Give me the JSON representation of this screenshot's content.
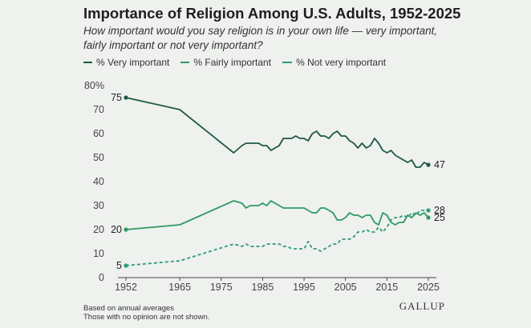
{
  "colors": {
    "very": "#1f5a44",
    "fairly": "#2f9a63",
    "not": "#2f9a78",
    "axis": "#444444",
    "grid": "#cfd6cf"
  },
  "title": "Importance of Religion Among U.S. Adults, 1952-2025",
  "subtitle": "How important would you say religion is in your own life — very important, fairly important or not very important?",
  "legend": {
    "very": "% Very important",
    "fairly": "% Fairly important",
    "not": "% Not very important"
  },
  "footnote": {
    "line1": "Based on annual averages",
    "line2": "Those with no opinion are not shown."
  },
  "brand": "GALLUP",
  "chart_data": {
    "type": "line",
    "title": "Importance of Religion Among U.S. Adults, 1952-2025",
    "xlabel": "",
    "ylabel": "",
    "xlim": [
      1952,
      2025
    ],
    "ylim": [
      0,
      80
    ],
    "x_ticks": [
      1952,
      1965,
      1975,
      1985,
      1995,
      2005,
      2015,
      2025
    ],
    "y_ticks": [
      0,
      10,
      20,
      30,
      40,
      50,
      60,
      70,
      80
    ],
    "y_tick_labels": [
      "0",
      "10",
      "20",
      "30",
      "40",
      "50",
      "60",
      "70",
      "80%"
    ],
    "grid": false,
    "legend_position": "top-left",
    "series": [
      {
        "name": "% Very important",
        "key": "very",
        "style": "solid",
        "points": [
          [
            1952,
            75
          ],
          [
            1965,
            70
          ],
          [
            1978,
            52
          ],
          [
            1980,
            55
          ],
          [
            1981,
            56
          ],
          [
            1982,
            56
          ],
          [
            1983,
            56
          ],
          [
            1984,
            56
          ],
          [
            1985,
            55
          ],
          [
            1986,
            55
          ],
          [
            1987,
            53
          ],
          [
            1988,
            54
          ],
          [
            1989,
            55
          ],
          [
            1990,
            58
          ],
          [
            1991,
            58
          ],
          [
            1992,
            58
          ],
          [
            1993,
            59
          ],
          [
            1994,
            58
          ],
          [
            1995,
            58
          ],
          [
            1996,
            57
          ],
          [
            1997,
            60
          ],
          [
            1998,
            61
          ],
          [
            1999,
            59
          ],
          [
            2000,
            59
          ],
          [
            2001,
            58
          ],
          [
            2002,
            60
          ],
          [
            2003,
            61
          ],
          [
            2004,
            59
          ],
          [
            2005,
            59
          ],
          [
            2006,
            57
          ],
          [
            2007,
            56
          ],
          [
            2008,
            54
          ],
          [
            2009,
            56
          ],
          [
            2010,
            54
          ],
          [
            2011,
            55
          ],
          [
            2012,
            58
          ],
          [
            2013,
            56
          ],
          [
            2014,
            53
          ],
          [
            2015,
            52
          ],
          [
            2016,
            53
          ],
          [
            2017,
            51
          ],
          [
            2018,
            50
          ],
          [
            2019,
            49
          ],
          [
            2020,
            48
          ],
          [
            2021,
            49
          ],
          [
            2022,
            46
          ],
          [
            2023,
            46
          ],
          [
            2024,
            48
          ],
          [
            2025,
            47
          ]
        ],
        "start_label": "75",
        "end_label": "47"
      },
      {
        "name": "% Fairly important",
        "key": "fairly",
        "style": "solid",
        "points": [
          [
            1952,
            20
          ],
          [
            1965,
            22
          ],
          [
            1978,
            32
          ],
          [
            1980,
            31
          ],
          [
            1981,
            29
          ],
          [
            1982,
            30
          ],
          [
            1983,
            30
          ],
          [
            1984,
            30
          ],
          [
            1985,
            31
          ],
          [
            1986,
            30
          ],
          [
            1987,
            32
          ],
          [
            1988,
            31
          ],
          [
            1989,
            30
          ],
          [
            1990,
            29
          ],
          [
            1991,
            29
          ],
          [
            1992,
            29
          ],
          [
            1993,
            29
          ],
          [
            1994,
            29
          ],
          [
            1995,
            29
          ],
          [
            1996,
            28
          ],
          [
            1997,
            27
          ],
          [
            1998,
            27
          ],
          [
            1999,
            29
          ],
          [
            2000,
            29
          ],
          [
            2001,
            28
          ],
          [
            2002,
            27
          ],
          [
            2003,
            24
          ],
          [
            2004,
            24
          ],
          [
            2005,
            25
          ],
          [
            2006,
            27
          ],
          [
            2007,
            26
          ],
          [
            2008,
            26
          ],
          [
            2009,
            25
          ],
          [
            2010,
            26
          ],
          [
            2011,
            26
          ],
          [
            2012,
            23
          ],
          [
            2013,
            22
          ],
          [
            2014,
            27
          ],
          [
            2015,
            26
          ],
          [
            2016,
            23
          ],
          [
            2017,
            22
          ],
          [
            2018,
            23
          ],
          [
            2019,
            23
          ],
          [
            2020,
            26
          ],
          [
            2021,
            25
          ],
          [
            2022,
            27
          ],
          [
            2023,
            26
          ],
          [
            2024,
            27
          ],
          [
            2025,
            25
          ]
        ],
        "start_label": "20",
        "end_label": "25"
      },
      {
        "name": "% Not very important",
        "key": "not",
        "style": "dashed",
        "points": [
          [
            1952,
            5
          ],
          [
            1965,
            7
          ],
          [
            1978,
            14
          ],
          [
            1980,
            13
          ],
          [
            1981,
            14
          ],
          [
            1982,
            13
          ],
          [
            1983,
            13
          ],
          [
            1984,
            13
          ],
          [
            1985,
            13
          ],
          [
            1986,
            14
          ],
          [
            1987,
            14
          ],
          [
            1988,
            14
          ],
          [
            1989,
            14
          ],
          [
            1990,
            13
          ],
          [
            1991,
            13
          ],
          [
            1992,
            12
          ],
          [
            1993,
            12
          ],
          [
            1994,
            12
          ],
          [
            1995,
            12
          ],
          [
            1996,
            15
          ],
          [
            1997,
            12
          ],
          [
            1998,
            12
          ],
          [
            1999,
            11
          ],
          [
            2000,
            12
          ],
          [
            2001,
            13
          ],
          [
            2002,
            14
          ],
          [
            2003,
            14
          ],
          [
            2004,
            16
          ],
          [
            2005,
            16
          ],
          [
            2006,
            16
          ],
          [
            2007,
            17
          ],
          [
            2008,
            19
          ],
          [
            2009,
            19
          ],
          [
            2010,
            20
          ],
          [
            2011,
            19
          ],
          [
            2012,
            19
          ],
          [
            2013,
            21
          ],
          [
            2014,
            19
          ],
          [
            2015,
            21
          ],
          [
            2016,
            24
          ],
          [
            2017,
            25
          ],
          [
            2018,
            25
          ],
          [
            2019,
            26
          ],
          [
            2020,
            25
          ],
          [
            2021,
            27
          ],
          [
            2022,
            26
          ],
          [
            2023,
            28
          ],
          [
            2024,
            28
          ],
          [
            2025,
            28
          ]
        ],
        "start_label": "5",
        "end_label": "28"
      }
    ]
  }
}
